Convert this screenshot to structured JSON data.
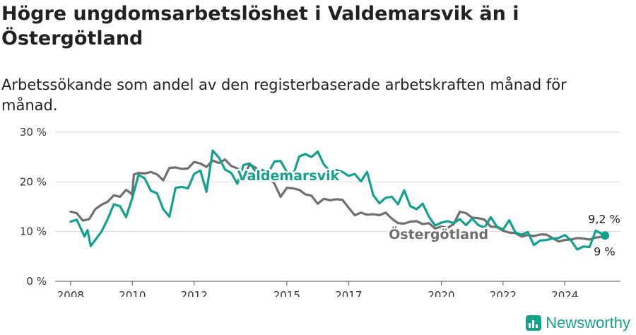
{
  "header": {
    "title": "Högre ungdomsarbetslöshet i Valdemarsvik än i Östergötland",
    "subtitle": "Arbetssökande som andel av den registerbaserade arbetskraften månad för månad."
  },
  "brand": {
    "name": "Newsworthy"
  },
  "colors": {
    "valdemarsvik": "#13a08e",
    "ostergotland": "#6f6f70",
    "grid": "#d9d9d9"
  },
  "chart_data": {
    "type": "line",
    "title": "Högre ungdomsarbetslöshet i Valdemarsvik än i Östergötland",
    "ylabel": "",
    "xlabel": "",
    "ylim": [
      0,
      30
    ],
    "xlim": [
      2007.5,
      2025.8
    ],
    "y_ticks": [
      0,
      10,
      20,
      30
    ],
    "y_tick_labels": [
      "0 %",
      "10 %",
      "20 %",
      "30 %"
    ],
    "x_ticks": [
      2008,
      2010,
      2012,
      2015,
      2017,
      2020,
      2022,
      2024
    ],
    "x_tick_labels": [
      "2008",
      "2010",
      "2012",
      "2015",
      "2017",
      "2020",
      "2022",
      "2024"
    ],
    "grid": true,
    "series": [
      {
        "name": "Östergötland",
        "label": "Östergötland",
        "end_label": "9 %",
        "color": "#6f6f70",
        "points": [
          [
            2008.0,
            14.0
          ],
          [
            2008.2,
            13.7
          ],
          [
            2008.4,
            12.2
          ],
          [
            2008.6,
            12.5
          ],
          [
            2008.8,
            14.5
          ],
          [
            2009.0,
            15.4
          ],
          [
            2009.2,
            16.0
          ],
          [
            2009.4,
            17.3
          ],
          [
            2009.6,
            17.0
          ],
          [
            2009.8,
            18.4
          ],
          [
            2010.0,
            17.5
          ],
          [
            2009.99,
            17.3
          ],
          [
            2010.05,
            21.5
          ],
          [
            2010.2,
            21.8
          ],
          [
            2010.4,
            21.7
          ],
          [
            2010.6,
            22.0
          ],
          [
            2010.8,
            21.5
          ],
          [
            2011.0,
            20.3
          ],
          [
            2011.2,
            22.8
          ],
          [
            2011.4,
            22.9
          ],
          [
            2011.6,
            22.6
          ],
          [
            2011.8,
            22.7
          ],
          [
            2012.0,
            24.0
          ],
          [
            2012.2,
            23.7
          ],
          [
            2012.4,
            23.0
          ],
          [
            2012.6,
            24.3
          ],
          [
            2012.8,
            23.8
          ],
          [
            2013.0,
            24.5
          ],
          [
            2013.2,
            23.2
          ],
          [
            2013.4,
            22.7
          ],
          [
            2013.6,
            21.2
          ],
          [
            2013.8,
            23.5
          ],
          [
            2014.0,
            22.8
          ],
          [
            2014.2,
            21.3
          ],
          [
            2014.4,
            21.6
          ],
          [
            2014.6,
            19.6
          ],
          [
            2014.8,
            17.0
          ],
          [
            2015.0,
            18.8
          ],
          [
            2015.2,
            18.7
          ],
          [
            2015.4,
            18.4
          ],
          [
            2015.6,
            17.5
          ],
          [
            2015.8,
            17.2
          ],
          [
            2016.0,
            15.6
          ],
          [
            2016.2,
            16.6
          ],
          [
            2016.4,
            16.3
          ],
          [
            2016.6,
            16.5
          ],
          [
            2016.8,
            16.4
          ],
          [
            2017.0,
            14.8
          ],
          [
            2017.2,
            13.3
          ],
          [
            2017.4,
            13.8
          ],
          [
            2017.6,
            13.4
          ],
          [
            2017.8,
            13.5
          ],
          [
            2018.0,
            13.3
          ],
          [
            2018.2,
            13.8
          ],
          [
            2018.4,
            12.6
          ],
          [
            2018.6,
            11.7
          ],
          [
            2018.8,
            11.6
          ],
          [
            2019.0,
            12.0
          ],
          [
            2019.2,
            12.1
          ],
          [
            2019.4,
            11.5
          ],
          [
            2019.6,
            11.7
          ],
          [
            2019.8,
            10.6
          ],
          [
            2020.0,
            11.0
          ],
          [
            2020.2,
            10.7
          ],
          [
            2020.4,
            11.5
          ],
          [
            2020.6,
            14.0
          ],
          [
            2020.8,
            13.7
          ],
          [
            2021.0,
            12.8
          ],
          [
            2021.2,
            12.7
          ],
          [
            2021.4,
            12.4
          ],
          [
            2021.6,
            11.0
          ],
          [
            2021.8,
            10.9
          ],
          [
            2022.0,
            10.2
          ],
          [
            2022.2,
            9.8
          ],
          [
            2022.4,
            9.7
          ],
          [
            2022.6,
            9.0
          ],
          [
            2022.8,
            9.3
          ],
          [
            2023.0,
            9.1
          ],
          [
            2023.2,
            9.4
          ],
          [
            2023.4,
            9.4
          ],
          [
            2023.6,
            8.7
          ],
          [
            2023.8,
            8.0
          ],
          [
            2024.0,
            8.3
          ],
          [
            2024.2,
            8.4
          ],
          [
            2024.4,
            8.7
          ],
          [
            2024.6,
            8.6
          ],
          [
            2024.8,
            8.4
          ],
          [
            2025.0,
            8.8
          ],
          [
            2025.3,
            9.0
          ]
        ]
      },
      {
        "name": "Valdemarsvik",
        "label": "Valdemarsvik",
        "end_label": "9,2 %",
        "color": "#13a08e",
        "points": [
          [
            2008.0,
            12.0
          ],
          [
            2008.2,
            12.4
          ],
          [
            2008.35,
            10.4
          ],
          [
            2008.45,
            9.0
          ],
          [
            2008.55,
            10.3
          ],
          [
            2008.65,
            7.1
          ],
          [
            2008.8,
            8.3
          ],
          [
            2009.0,
            10.0
          ],
          [
            2009.2,
            12.5
          ],
          [
            2009.4,
            15.5
          ],
          [
            2009.6,
            15.1
          ],
          [
            2009.8,
            12.9
          ],
          [
            2010.0,
            16.8
          ],
          [
            2010.2,
            21.4
          ],
          [
            2010.4,
            20.7
          ],
          [
            2010.6,
            18.2
          ],
          [
            2010.8,
            17.7
          ],
          [
            2011.0,
            14.5
          ],
          [
            2011.2,
            13.0
          ],
          [
            2011.4,
            18.8
          ],
          [
            2011.6,
            19.0
          ],
          [
            2011.8,
            18.7
          ],
          [
            2012.0,
            21.6
          ],
          [
            2012.2,
            22.3
          ],
          [
            2012.4,
            18.0
          ],
          [
            2012.6,
            26.3
          ],
          [
            2012.8,
            24.9
          ],
          [
            2013.0,
            22.5
          ],
          [
            2013.2,
            21.8
          ],
          [
            2013.4,
            19.6
          ],
          [
            2013.6,
            23.4
          ],
          [
            2013.8,
            23.7
          ],
          [
            2014.0,
            22.0
          ],
          [
            2014.2,
            22.4
          ],
          [
            2014.4,
            21.8
          ],
          [
            2014.6,
            24.1
          ],
          [
            2014.8,
            24.2
          ],
          [
            2015.0,
            22.0
          ],
          [
            2015.2,
            21.3
          ],
          [
            2015.4,
            25.1
          ],
          [
            2015.6,
            25.6
          ],
          [
            2015.8,
            25.0
          ],
          [
            2016.0,
            26.1
          ],
          [
            2016.2,
            23.5
          ],
          [
            2016.4,
            22.1
          ],
          [
            2016.6,
            22.4
          ],
          [
            2016.8,
            22.0
          ],
          [
            2017.0,
            21.2
          ],
          [
            2017.2,
            21.6
          ],
          [
            2017.4,
            20.1
          ],
          [
            2017.6,
            22.0
          ],
          [
            2017.8,
            17.3
          ],
          [
            2018.0,
            15.7
          ],
          [
            2018.2,
            16.8
          ],
          [
            2018.4,
            17.0
          ],
          [
            2018.6,
            15.5
          ],
          [
            2018.8,
            18.3
          ],
          [
            2019.0,
            15.1
          ],
          [
            2019.2,
            14.5
          ],
          [
            2019.4,
            15.6
          ],
          [
            2019.6,
            13.0
          ],
          [
            2019.8,
            11.2
          ],
          [
            2020.0,
            11.8
          ],
          [
            2020.2,
            12.1
          ],
          [
            2020.4,
            11.7
          ],
          [
            2020.6,
            12.5
          ],
          [
            2020.8,
            11.3
          ],
          [
            2021.0,
            12.6
          ],
          [
            2021.2,
            11.3
          ],
          [
            2021.4,
            10.8
          ],
          [
            2021.6,
            12.9
          ],
          [
            2021.8,
            11.0
          ],
          [
            2022.0,
            10.4
          ],
          [
            2022.2,
            12.3
          ],
          [
            2022.4,
            9.8
          ],
          [
            2022.6,
            9.4
          ],
          [
            2022.8,
            9.9
          ],
          [
            2023.0,
            7.3
          ],
          [
            2023.2,
            8.2
          ],
          [
            2023.4,
            8.3
          ],
          [
            2023.6,
            8.6
          ],
          [
            2023.8,
            8.7
          ],
          [
            2024.0,
            9.3
          ],
          [
            2024.2,
            8.2
          ],
          [
            2024.4,
            6.4
          ],
          [
            2024.6,
            7.0
          ],
          [
            2024.8,
            6.9
          ],
          [
            2025.0,
            10.2
          ],
          [
            2025.3,
            9.2
          ]
        ]
      }
    ]
  }
}
